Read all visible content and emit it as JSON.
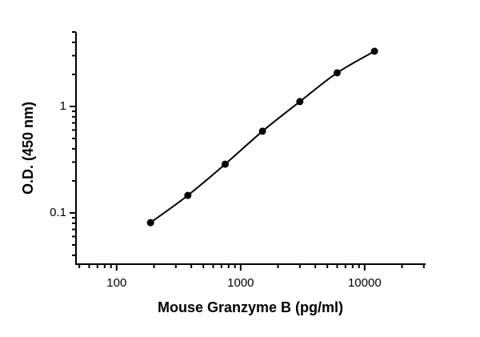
{
  "chart_data": {
    "type": "scatter",
    "x_label": "Mouse Granzyme B (pg/ml)",
    "y_label": "O.D. (450 nm)",
    "x": [
      187.5,
      375,
      750,
      1500,
      3000,
      6000,
      12000
    ],
    "series": [
      {
        "color": "#000000",
        "values": [
          0.081,
          0.146,
          0.287,
          0.585,
          1.11,
          2.07,
          3.3
        ]
      }
    ],
    "fit_curve": true,
    "xscale": "log",
    "yscale": "log",
    "xlim": [
      47,
      31000
    ],
    "ylim": [
      0.033,
      5
    ],
    "xticks": [
      100,
      1000,
      10000
    ],
    "yticks": [
      0.1,
      1
    ],
    "xminorticks": [
      50,
      60,
      70,
      80,
      90,
      200,
      300,
      400,
      500,
      600,
      700,
      800,
      900,
      2000,
      3000,
      4000,
      5000,
      6000,
      7000,
      8000,
      9000,
      20000,
      30000
    ],
    "yminorticks": [
      0.04,
      0.05,
      0.06,
      0.07,
      0.08,
      0.09,
      0.2,
      0.3,
      0.4,
      0.5,
      0.6,
      0.7,
      0.8,
      0.9,
      2,
      3,
      4,
      5
    ],
    "grid": false
  }
}
